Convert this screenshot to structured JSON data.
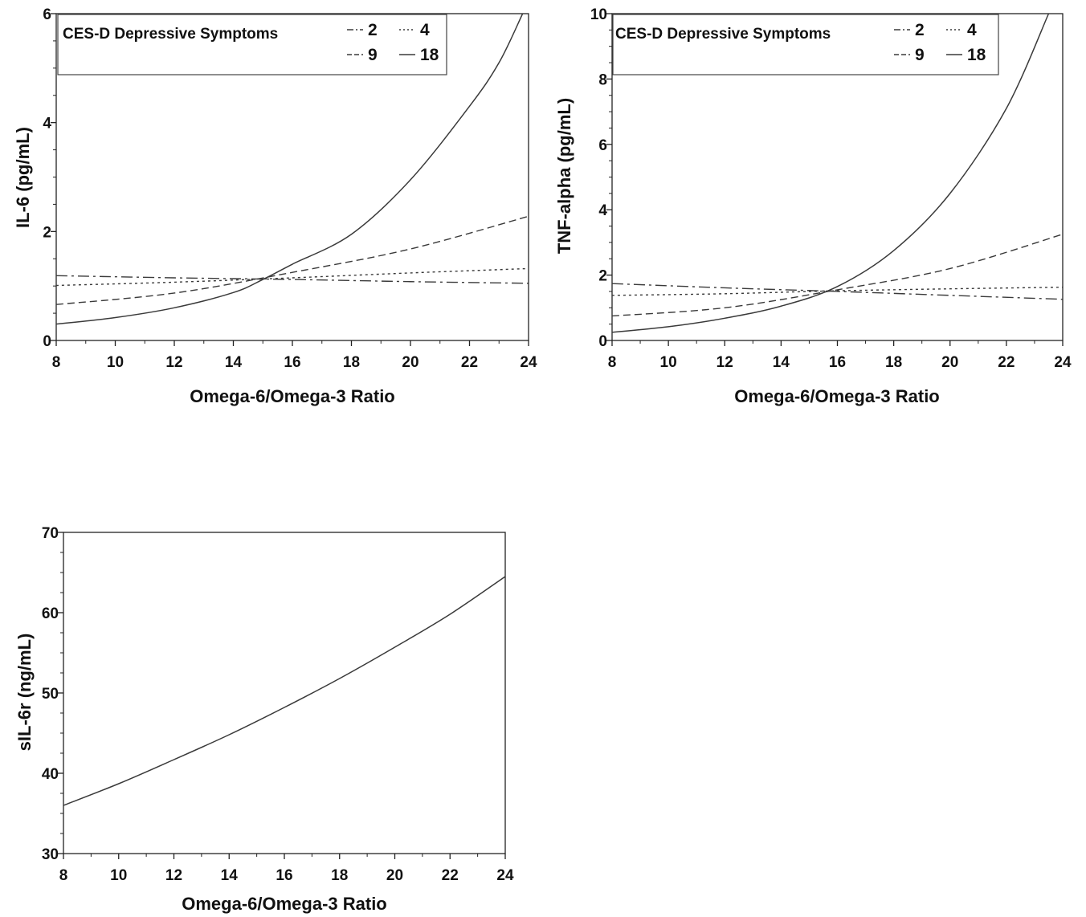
{
  "chart_data": [
    {
      "id": "il6",
      "type": "line",
      "xlabel": "Omega-6/Omega-3 Ratio",
      "ylabel": "IL-6 (pg/mL)",
      "xlim": [
        8,
        24
      ],
      "ylim": [
        0,
        6
      ],
      "xticks": [
        8,
        10,
        12,
        14,
        16,
        18,
        20,
        22,
        24
      ],
      "yticks": [
        0,
        2,
        4,
        6
      ],
      "grid": false,
      "legend": {
        "title": "CES-D Depressive Symptoms",
        "position": "top-left"
      },
      "series": [
        {
          "name": "2",
          "dash": "dash-dot",
          "x": [
            8,
            12,
            16,
            20,
            24
          ],
          "y": [
            1.19,
            1.15,
            1.12,
            1.08,
            1.05
          ]
        },
        {
          "name": "4",
          "dash": "dotted",
          "x": [
            8,
            12,
            16,
            20,
            24
          ],
          "y": [
            1.01,
            1.07,
            1.15,
            1.24,
            1.32
          ]
        },
        {
          "name": "9",
          "dash": "dashed",
          "x": [
            8,
            12,
            16,
            20,
            24
          ],
          "y": [
            0.66,
            0.87,
            1.25,
            1.68,
            2.28
          ]
        },
        {
          "name": "18",
          "dash": "solid",
          "x": [
            8,
            10,
            12,
            14,
            15,
            16,
            18,
            20,
            22,
            23,
            23.8
          ],
          "y": [
            0.3,
            0.42,
            0.6,
            0.88,
            1.12,
            1.4,
            1.95,
            2.95,
            4.3,
            5.1,
            6.0
          ]
        }
      ]
    },
    {
      "id": "tnf",
      "type": "line",
      "xlabel": "Omega-6/Omega-3 Ratio",
      "ylabel": "TNF-alpha (pg/mL)",
      "xlim": [
        8,
        24
      ],
      "ylim": [
        0,
        10
      ],
      "xticks": [
        8,
        10,
        12,
        14,
        16,
        18,
        20,
        22,
        24
      ],
      "yticks": [
        0,
        2,
        4,
        6,
        8,
        10
      ],
      "grid": false,
      "legend": {
        "title": "CES-D Depressive Symptoms",
        "position": "top-left"
      },
      "series": [
        {
          "name": "2",
          "dash": "dash-dot",
          "x": [
            8,
            12,
            16,
            20,
            24
          ],
          "y": [
            1.74,
            1.61,
            1.5,
            1.38,
            1.26
          ]
        },
        {
          "name": "4",
          "dash": "dotted",
          "x": [
            8,
            12,
            16,
            20,
            24
          ],
          "y": [
            1.38,
            1.43,
            1.52,
            1.58,
            1.63
          ]
        },
        {
          "name": "9",
          "dash": "dashed",
          "x": [
            8,
            12,
            16,
            20,
            24
          ],
          "y": [
            0.75,
            1.0,
            1.55,
            2.2,
            3.25
          ]
        },
        {
          "name": "18",
          "dash": "solid",
          "x": [
            8,
            10,
            12,
            14,
            16,
            18,
            20,
            22,
            23.5
          ],
          "y": [
            0.25,
            0.42,
            0.68,
            1.05,
            1.65,
            2.75,
            4.5,
            7.1,
            10.0
          ]
        }
      ]
    },
    {
      "id": "sil6r",
      "type": "line",
      "xlabel": "Omega-6/Omega-3 Ratio",
      "ylabel": "sIL-6r (ng/mL)",
      "xlim": [
        8,
        24
      ],
      "ylim": [
        30,
        70
      ],
      "xticks": [
        8,
        10,
        12,
        14,
        16,
        18,
        20,
        22,
        24
      ],
      "yticks": [
        30,
        40,
        50,
        60,
        70
      ],
      "grid": false,
      "series": [
        {
          "name": "",
          "dash": "solid",
          "x": [
            8,
            10,
            12,
            14,
            16,
            18,
            20,
            22,
            24
          ],
          "y": [
            36.0,
            38.7,
            41.7,
            44.8,
            48.2,
            51.8,
            55.7,
            59.8,
            64.5
          ]
        }
      ]
    }
  ],
  "colors": {
    "line": "#3a3a3a",
    "axis": "#222222",
    "legend_border": "#444444"
  }
}
